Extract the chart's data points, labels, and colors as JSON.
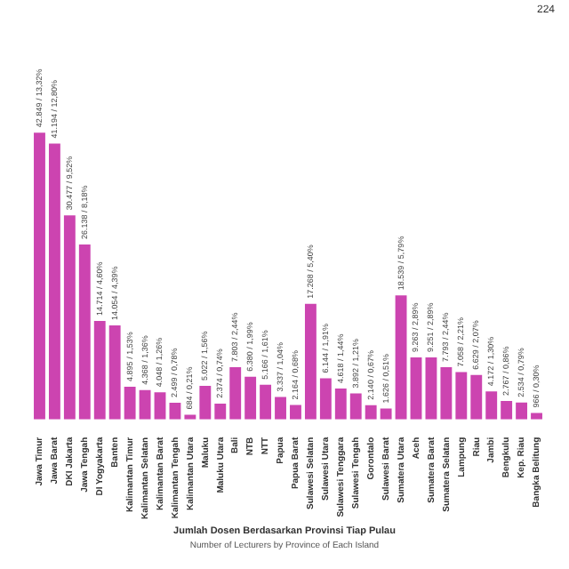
{
  "chart_data": {
    "type": "bar",
    "title": "Jumlah Dosen Berdasarkan Provinsi Tiap Pulau",
    "subtitle": "Number of Lecturers by Province of Each Island",
    "annotations": [
      "224"
    ],
    "categories": [
      "Jawa Timur",
      "Jawa Barat",
      "DKI Jakarta",
      "Jawa Tengah",
      "DI Yogyakarta",
      "Banten",
      "Kalimantan Timur",
      "Kalimantan Selatan",
      "Kalimantan Barat",
      "Kalimantan Tengah",
      "Kalimantan Utara",
      "Maluku",
      "Maluku Utara",
      "Bali",
      "NTB",
      "NTT",
      "Papua",
      "Papua Barat",
      "Sulawesi Selatan",
      "Sulawesi Utara",
      "Sulawesi Tenggara",
      "Sulawesi Tengah",
      "Gorontalo",
      "Sulawesi Barat",
      "Sumatera Utara",
      "Aceh",
      "Sumatera Barat",
      "Sumatera Selatan",
      "Lampung",
      "Riau",
      "Jambi",
      "Bengkulu",
      "Kep. Riau",
      "Bangka Belitung"
    ],
    "values": [
      42849,
      41194,
      30477,
      26138,
      14714,
      14054,
      4895,
      4368,
      4048,
      2499,
      684,
      5022,
      2374,
      7803,
      6380,
      5166,
      3337,
      2164,
      17268,
      6144,
      4618,
      3892,
      2140,
      1626,
      18539,
      9263,
      9251,
      7793,
      7058,
      6629,
      4172,
      2767,
      2534,
      966
    ],
    "value_labels": [
      "42.849 / 13,32%",
      "41.194 / 12,80%",
      "30.477 / 9,52%",
      "26.138 / 8,18%",
      "14.714 / 4,60%",
      "14.054 / 4,39%",
      "4.895 / 1,53%",
      "4.368 / 1,36%",
      "4.048 / 1,26%",
      "2.499 / 0,78%",
      "684 / 0,21%",
      "5.022 / 1,56%",
      "2.374 / 0,74%",
      "7.803 / 2,44%",
      "6.380 / 1,99%",
      "5.166 / 1,61%",
      "3.337 / 1,04%",
      "2.164 / 0,68%",
      "17.268 / 5,40%",
      "6.144 / 1,91%",
      "4.618 / 1,44%",
      "3.892 / 1,21%",
      "2.140 / 0,67%",
      "1.626 / 0,51%",
      "18.539 / 5,79%",
      "9.263 / 2,89%",
      "9.251 / 2,89%",
      "7.793 / 2,44%",
      "7.058 / 2,21%",
      "6.629 / 2,07%",
      "4.172 / 1,30%",
      "2.767 / 0,86%",
      "2.534 / 0,79%",
      "966 / 0,30%"
    ],
    "color": "#cc44b0"
  }
}
